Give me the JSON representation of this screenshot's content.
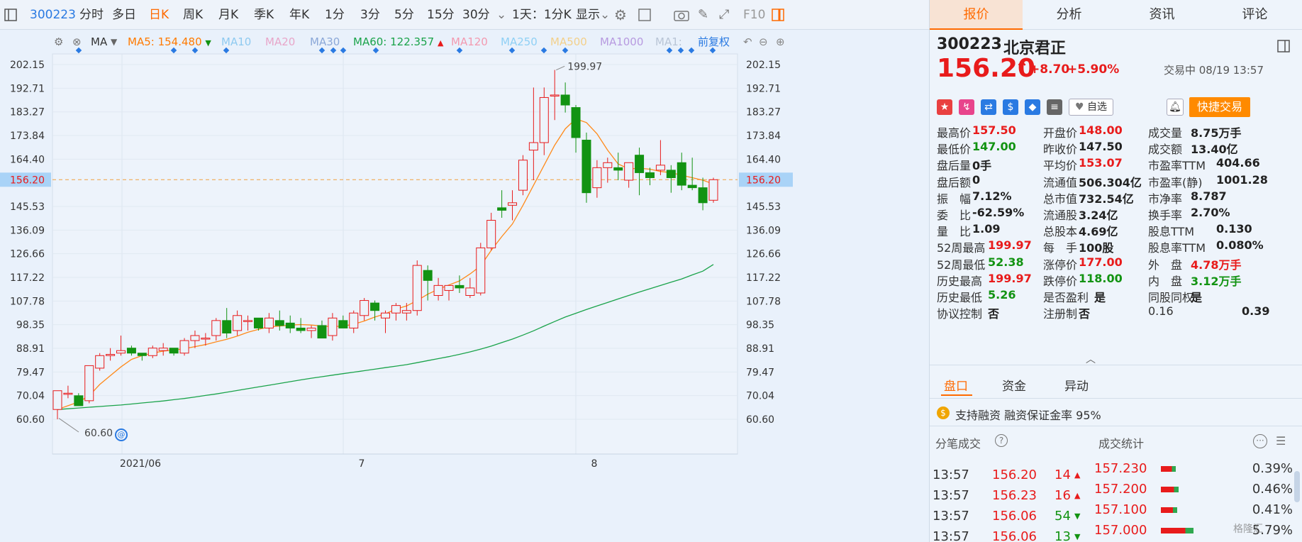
{
  "toolbar": {
    "code": "300223",
    "items": [
      {
        "label": "分时"
      },
      {
        "label": "多日"
      },
      {
        "label": "日K"
      },
      {
        "label": "周K"
      },
      {
        "label": "月K"
      },
      {
        "label": "季K"
      },
      {
        "label": "年K"
      },
      {
        "label": "1分"
      },
      {
        "label": "3分"
      },
      {
        "label": "5分"
      },
      {
        "label": "15分"
      },
      {
        "label": "30分"
      },
      {
        "label": "1天：1分K"
      },
      {
        "label": "显示"
      }
    ],
    "f10": "F10"
  },
  "ma": {
    "label": "MA",
    "items": [
      {
        "label": "MA5:",
        "value": "154.480",
        "color": "#ff7a00",
        "arrow": "▼"
      },
      {
        "label": "MA10",
        "value": "",
        "color": "#8ecaf0"
      },
      {
        "label": "MA20",
        "value": "",
        "color": "#e8a6c9"
      },
      {
        "label": "MA30",
        "value": "",
        "color": "#8ba8d8"
      },
      {
        "label": "MA60:",
        "value": "122.357",
        "color": "#1aa34a",
        "arrow": "▲"
      },
      {
        "label": "MA120",
        "value": "",
        "color": "#f39ab0"
      },
      {
        "label": "MA250",
        "value": "",
        "color": "#8fd0f5"
      },
      {
        "label": "MA500",
        "value": "",
        "color": "#f3d08a"
      },
      {
        "label": "MA1000",
        "value": "",
        "color": "#b79ae0"
      },
      {
        "label": "MA1:",
        "value": "",
        "color": "#b9c5d6"
      }
    ],
    "fuquan": "前复权"
  },
  "chart_data": {
    "type": "candlestick",
    "y_ticks": [
      "202.15",
      "192.71",
      "183.27",
      "173.84",
      "164.40",
      "156.20",
      "145.53",
      "136.09",
      "126.66",
      "117.22",
      "107.78",
      "98.35",
      "88.91",
      "79.47",
      "70.04",
      "60.60"
    ],
    "x_labels": [
      "2021/06",
      "7",
      "8"
    ],
    "current_price": "156.20",
    "high_label": "199.97",
    "low_label": "60.60",
    "ylim": [
      55,
      207
    ],
    "candles": [
      [
        64.5,
        72,
        60.6,
        72
      ],
      [
        71,
        74,
        69,
        71
      ],
      [
        70,
        71,
        66,
        66
      ],
      [
        68,
        82,
        67,
        82
      ],
      [
        81,
        87,
        80,
        86
      ],
      [
        86,
        89,
        84,
        86.5
      ],
      [
        87,
        94,
        86,
        88
      ],
      [
        89,
        90,
        86,
        87
      ],
      [
        87,
        87,
        84,
        86
      ],
      [
        86,
        90,
        85,
        89
      ],
      [
        88,
        91,
        86,
        89
      ],
      [
        89,
        88,
        86,
        87
      ],
      [
        87,
        93,
        86,
        92
      ],
      [
        92,
        96,
        89,
        94
      ],
      [
        93,
        95,
        90,
        93
      ],
      [
        94,
        101,
        92,
        100
      ],
      [
        100,
        105,
        93,
        95
      ],
      [
        96,
        104,
        94,
        102
      ],
      [
        100,
        102,
        96,
        100
      ],
      [
        101,
        100,
        96,
        97
      ],
      [
        97,
        103,
        95,
        101
      ],
      [
        100,
        104,
        96,
        98
      ],
      [
        99,
        102,
        95,
        97
      ],
      [
        97,
        101,
        95,
        96
      ],
      [
        96,
        98,
        93,
        97
      ],
      [
        98,
        100,
        93,
        93
      ],
      [
        94,
        103,
        92,
        101
      ],
      [
        100,
        102,
        97,
        97
      ],
      [
        97,
        104,
        95,
        103
      ],
      [
        102,
        109,
        100,
        108
      ],
      [
        107,
        108,
        100,
        104
      ],
      [
        101,
        104,
        95,
        103
      ],
      [
        103,
        107,
        100,
        106
      ],
      [
        103,
        107,
        100,
        104
      ],
      [
        104,
        124,
        102,
        122
      ],
      [
        120,
        122,
        108,
        116
      ],
      [
        110,
        117,
        108,
        114
      ],
      [
        112,
        114,
        108,
        114
      ],
      [
        114,
        118,
        111,
        113
      ],
      [
        110,
        117,
        109,
        113
      ],
      [
        111,
        131,
        110,
        129
      ],
      [
        129,
        143,
        128,
        140
      ],
      [
        145,
        152,
        141,
        144
      ],
      [
        146,
        152,
        140,
        147
      ],
      [
        152,
        166,
        150,
        164
      ],
      [
        168,
        193,
        156,
        171
      ],
      [
        171,
        193,
        166,
        189
      ],
      [
        190,
        200,
        180,
        190
      ],
      [
        190,
        195,
        183,
        186
      ],
      [
        185,
        186,
        167,
        173
      ],
      [
        172,
        175,
        147,
        151
      ],
      [
        153,
        164,
        149,
        161
      ],
      [
        161,
        165,
        155,
        163
      ],
      [
        161,
        167,
        156,
        160
      ],
      [
        156,
        163,
        153,
        163
      ],
      [
        166,
        169,
        150,
        159
      ],
      [
        159,
        161,
        154,
        157
      ],
      [
        160,
        172,
        158,
        162
      ],
      [
        160,
        162,
        151,
        157
      ],
      [
        163,
        167,
        152,
        154
      ],
      [
        154,
        165,
        152,
        153
      ],
      [
        153,
        157,
        144,
        147
      ],
      [
        148,
        157,
        147,
        156.2
      ]
    ],
    "ma5": [
      64.5,
      66,
      67.5,
      70,
      74.5,
      78,
      81.5,
      84.5,
      86,
      87,
      87.8,
      88.2,
      88.8,
      89.6,
      90.4,
      91.5,
      92.5,
      93.8,
      95.3,
      96.5,
      97.5,
      97.8,
      98.2,
      98.4,
      98.2,
      97.8,
      97.6,
      97.8,
      98.5,
      99.8,
      101.4,
      102.7,
      104.6,
      105.8,
      108,
      110.5,
      112.5,
      114.2,
      115.8,
      118.6,
      121.8,
      128,
      133.5,
      138.5,
      146,
      154,
      162,
      170,
      176.5,
      180.5,
      179,
      174.5,
      168,
      162.5,
      160.5,
      160.8,
      160.4,
      159.5,
      159,
      158,
      157,
      156,
      154.5
    ],
    "ma60": [
      64.5,
      64.8,
      65.1,
      65.4,
      65.7,
      66,
      66.3,
      66.7,
      67.1,
      67.5,
      67.9,
      68.4,
      68.9,
      69.5,
      70.1,
      70.7,
      71.4,
      72.1,
      72.8,
      73.5,
      74.2,
      74.9,
      75.6,
      76.3,
      77,
      77.6,
      78.2,
      78.8,
      79.4,
      80,
      80.6,
      81.2,
      81.8,
      82.4,
      83.2,
      84,
      84.8,
      85.6,
      86.5,
      87.5,
      88.6,
      89.8,
      91.2,
      92.6,
      94.2,
      95.9,
      97.8,
      99.6,
      101.4,
      102.9,
      104.4,
      105.8,
      107.2,
      108.6,
      110,
      111.4,
      112.7,
      114,
      115.3,
      116.6,
      118.2,
      119.7,
      122.36
    ]
  },
  "right": {
    "tabs": [
      "报价",
      "分析",
      "资讯",
      "评论"
    ],
    "code": "300223",
    "name": "北京君正",
    "price": "156.20",
    "arrow": "↑",
    "change": "+8.70",
    "change_pct": "+5.90%",
    "status": "交易中 08/19 13:57",
    "watch_label": "自选",
    "fast_trade": "快捷交易",
    "icons": [
      {
        "name": "china-flag-icon",
        "glyph": "★",
        "color": "#e94040"
      },
      {
        "name": "hot-icon",
        "glyph": "↯",
        "color": "#e8448c"
      },
      {
        "name": "shuffle-icon",
        "glyph": "⇄",
        "color": "#2a7ae2"
      },
      {
        "name": "dollar-icon",
        "glyph": "$",
        "color": "#2a7ae2"
      },
      {
        "name": "tag-icon",
        "glyph": "◆",
        "color": "#2a7ae2"
      },
      {
        "name": "doc-icon",
        "glyph": "≡",
        "color": "#666"
      }
    ],
    "quotes": [
      [
        {
          "label": "最高价",
          "value": "157.50",
          "c": "red"
        },
        {
          "label": "开盘价",
          "value": "148.00",
          "c": "red"
        },
        {
          "label": "成交量",
          "value": "8.75万手",
          "c": "blk"
        }
      ],
      [
        {
          "label": "最低价",
          "value": "147.00",
          "c": "green"
        },
        {
          "label": "昨收价",
          "value": "147.50",
          "c": "blk"
        },
        {
          "label": "成交额",
          "value": "13.40亿",
          "c": "blk"
        }
      ],
      [
        {
          "label": "盘后量",
          "value": "0手",
          "c": "blk"
        },
        {
          "label": "平均价",
          "value": "153.07",
          "c": "red"
        },
        {
          "label": "市盈率TTM",
          "value": "404.66",
          "c": "blk"
        }
      ],
      [
        {
          "label": "盘后额",
          "value": "0",
          "c": "blk"
        },
        {
          "label": "流通值",
          "value": "506.304亿",
          "c": "blk"
        },
        {
          "label": "市盈率(静)",
          "value": "1001.28",
          "c": "blk"
        }
      ],
      [
        {
          "label": "振　幅",
          "value": "7.12%",
          "c": "blk"
        },
        {
          "label": "总市值",
          "value": "732.54亿",
          "c": "blk"
        },
        {
          "label": "市净率",
          "value": "8.787",
          "c": "blk"
        }
      ],
      [
        {
          "label": "委　比",
          "value": "-62.59%",
          "c": "blk"
        },
        {
          "label": "流通股",
          "value": "3.24亿",
          "c": "blk"
        },
        {
          "label": "换手率",
          "value": "2.70%",
          "c": "blk"
        }
      ],
      [
        {
          "label": "量　比",
          "value": "1.09",
          "c": "blk"
        },
        {
          "label": "总股本",
          "value": "4.69亿",
          "c": "blk"
        },
        {
          "label": "股息TTM",
          "value": "0.130",
          "c": "blk"
        }
      ],
      [
        {
          "label": "52周最高",
          "value": "199.97",
          "c": "red"
        },
        {
          "label": "每　手",
          "value": "100股",
          "c": "blk"
        },
        {
          "label": "股息率TTM",
          "value": "0.080%",
          "c": "blk"
        }
      ],
      [
        {
          "label": "52周最低",
          "value": "52.38",
          "c": "green"
        },
        {
          "label": "涨停价",
          "value": "177.00",
          "c": "red"
        },
        {
          "label": "外　盘",
          "value": "4.78万手",
          "c": "red"
        }
      ],
      [
        {
          "label": "历史最高",
          "value": "199.97",
          "c": "red"
        },
        {
          "label": "跌停价",
          "value": "118.00",
          "c": "green"
        },
        {
          "label": "内　盘",
          "value": "3.12万手",
          "c": "green"
        }
      ],
      [
        {
          "label": "历史最低",
          "value": "5.26",
          "c": "green"
        },
        {
          "label": "是否盈利",
          "value": "是",
          "c": "blk"
        },
        {
          "label": "同股同权",
          "value": "是",
          "c": "blk"
        }
      ],
      [
        {
          "label": "协议控制",
          "value": "否",
          "c": "blk"
        },
        {
          "label": "注册制",
          "value": "否",
          "c": "blk"
        },
        {
          "label": "0.16",
          "value": "0.39",
          "c": "blk"
        }
      ]
    ],
    "subtabs": [
      "盘口",
      "资金",
      "异动"
    ],
    "margin": "支持融资  融资保证金率 95%",
    "trades_title": "分笔成交",
    "stats_title": "成交统计",
    "trades": [
      {
        "time": "13:57",
        "price": "156.20",
        "vol": "14",
        "dir": "up"
      },
      {
        "time": "13:57",
        "price": "156.23",
        "vol": "16",
        "dir": "up"
      },
      {
        "time": "13:57",
        "price": "156.06",
        "vol": "54",
        "dir": "down"
      },
      {
        "time": "13:57",
        "price": "156.06",
        "vol": "13",
        "dir": "down"
      }
    ],
    "stats": [
      {
        "price": "157.230",
        "pct": "0.39%",
        "frac": 0.45
      },
      {
        "price": "157.200",
        "pct": "0.46%",
        "frac": 0.55
      },
      {
        "price": "157.100",
        "pct": "0.41%",
        "frac": 0.5
      },
      {
        "price": "157.000",
        "pct": "5.79%",
        "frac": 1.0
      }
    ],
    "watermark": "格隆汇"
  }
}
